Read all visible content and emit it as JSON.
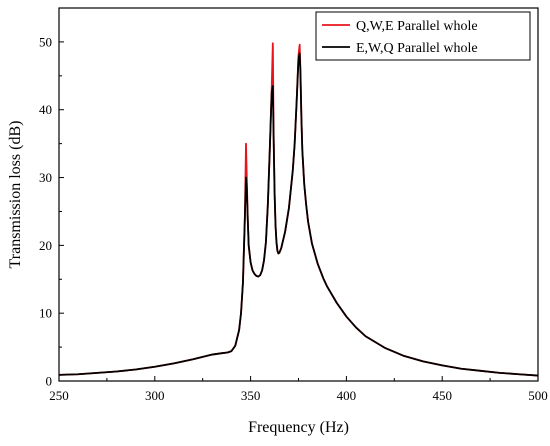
{
  "chart_data": {
    "type": "line",
    "title": "",
    "xlabel": "Frequency (Hz)",
    "ylabel": "Transmission loss (dB)",
    "xlim": [
      250,
      500
    ],
    "ylim": [
      0,
      55
    ],
    "x_ticks": [
      250,
      300,
      350,
      400,
      450,
      500
    ],
    "y_ticks": [
      0,
      10,
      20,
      30,
      40,
      50
    ],
    "grid": false,
    "legend_position": "top-right",
    "series": [
      {
        "name": "Q,W,E Parallel whole",
        "color": "#e8141c",
        "x": [
          250,
          260,
          270,
          280,
          290,
          300,
          310,
          320,
          330,
          335,
          338,
          340,
          342,
          344,
          345,
          346,
          347,
          347.6,
          348,
          348.5,
          349,
          350,
          351,
          352,
          353,
          354,
          355,
          356,
          357,
          358,
          359,
          360,
          361,
          361.6,
          362,
          362.5,
          363,
          363.5,
          364,
          364.5,
          365,
          366,
          368,
          370,
          372,
          373,
          374,
          375,
          375.6,
          376,
          376.5,
          377,
          378,
          379,
          380,
          382,
          385,
          388,
          390,
          395,
          400,
          405,
          410,
          420,
          430,
          440,
          450,
          460,
          470,
          480,
          490,
          500
        ],
        "values": [
          0.9,
          1.0,
          1.2,
          1.4,
          1.7,
          2.1,
          2.6,
          3.2,
          3.9,
          4.1,
          4.2,
          4.4,
          5.2,
          7.5,
          10.0,
          14.5,
          24.0,
          35.0,
          30.0,
          24.0,
          20.0,
          17.5,
          16.3,
          15.8,
          15.5,
          15.4,
          15.6,
          16.3,
          17.8,
          20.5,
          26.0,
          34.0,
          43.0,
          49.8,
          37.0,
          28.0,
          23.0,
          20.5,
          19.2,
          18.8,
          18.9,
          19.6,
          22.0,
          25.5,
          31.0,
          35.0,
          41.0,
          48.0,
          49.6,
          46.0,
          39.0,
          34.0,
          29.0,
          26.0,
          23.5,
          20.3,
          17.3,
          15.1,
          13.9,
          11.5,
          9.5,
          7.9,
          6.6,
          4.9,
          3.7,
          2.9,
          2.3,
          1.8,
          1.5,
          1.2,
          1.0,
          0.8
        ]
      },
      {
        "name": "E,W,Q Parallel whole",
        "color": "#000000",
        "x": [
          250,
          260,
          270,
          280,
          290,
          300,
          310,
          320,
          330,
          335,
          338,
          340,
          342,
          344,
          345,
          346,
          347,
          347.6,
          348,
          348.5,
          349,
          350,
          351,
          352,
          353,
          354,
          355,
          356,
          357,
          358,
          359,
          360,
          361,
          361.6,
          362,
          362.5,
          363,
          363.5,
          364,
          364.5,
          365,
          366,
          368,
          370,
          372,
          373,
          374,
          375,
          375.6,
          376,
          376.5,
          377,
          378,
          379,
          380,
          382,
          385,
          388,
          390,
          395,
          400,
          405,
          410,
          420,
          430,
          440,
          450,
          460,
          470,
          480,
          490,
          500
        ],
        "values": [
          0.9,
          1.0,
          1.2,
          1.4,
          1.7,
          2.1,
          2.6,
          3.2,
          3.9,
          4.1,
          4.2,
          4.4,
          5.2,
          7.5,
          10.0,
          14.5,
          24.0,
          30.0,
          28.5,
          24.0,
          20.0,
          17.5,
          16.3,
          15.8,
          15.5,
          15.4,
          15.6,
          16.3,
          17.8,
          20.5,
          26.0,
          34.0,
          42.5,
          43.5,
          36.0,
          28.0,
          23.0,
          20.5,
          19.2,
          18.8,
          18.9,
          19.6,
          22.0,
          25.5,
          31.0,
          35.0,
          41.0,
          47.5,
          48.3,
          45.5,
          39.0,
          34.0,
          29.0,
          26.0,
          23.5,
          20.3,
          17.3,
          15.1,
          13.9,
          11.5,
          9.5,
          7.9,
          6.6,
          4.9,
          3.7,
          2.9,
          2.3,
          1.8,
          1.5,
          1.2,
          1.0,
          0.8
        ]
      }
    ]
  }
}
